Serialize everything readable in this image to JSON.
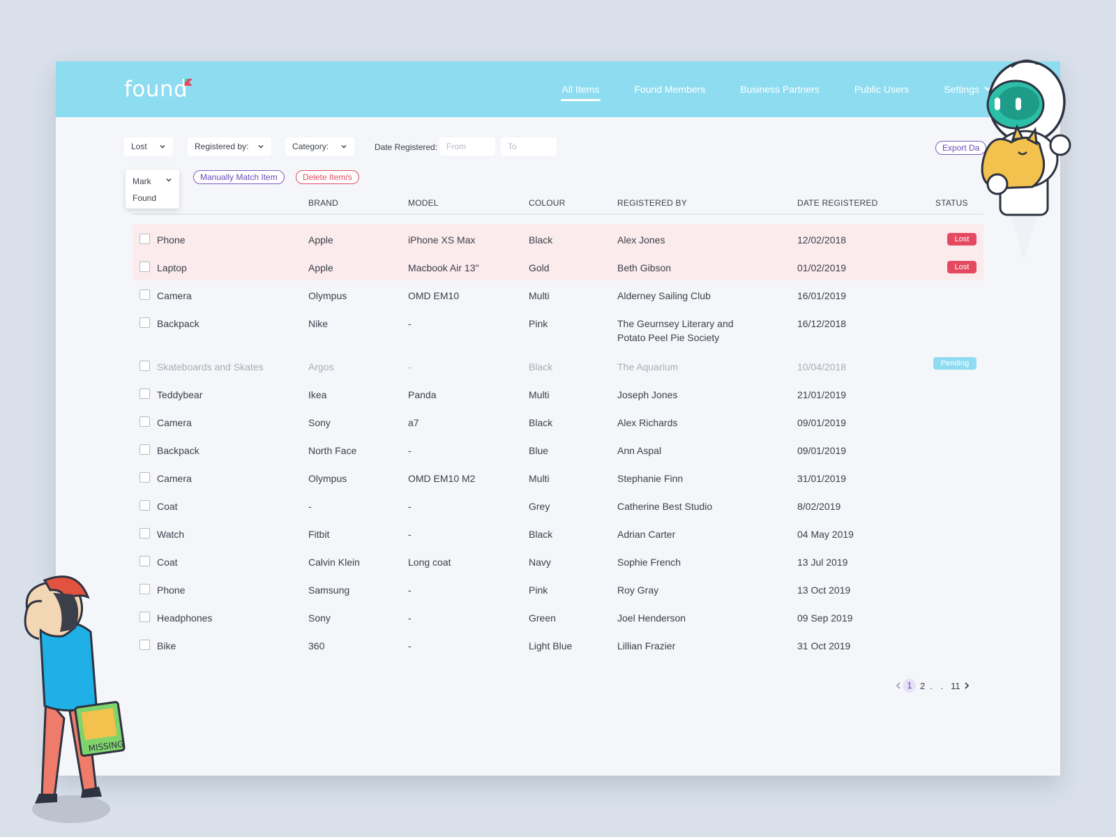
{
  "app": {
    "logo_text": "found",
    "brand_color": "#8edcf0",
    "flag_colors": [
      "#e5495f",
      "#3cc7b5"
    ]
  },
  "nav": {
    "items": [
      {
        "label": "All Items",
        "active": true
      },
      {
        "label": "Found Members",
        "active": false
      },
      {
        "label": "Business Partners",
        "active": false
      },
      {
        "label": "Public Users",
        "active": false
      },
      {
        "label": "Settings",
        "active": false
      }
    ]
  },
  "filters": {
    "status_value": "Lost",
    "registered_by_label": "Registered by:",
    "category_label": "Category:",
    "date_label": "Date Registered:",
    "from_placeholder": "From",
    "to_placeholder": "To",
    "export_label": "Export Da"
  },
  "actions": {
    "mark_label": "Mark",
    "mark_option_found": "Found",
    "manual_match_label": "Manually Match Item",
    "delete_label": "Delete Item/s"
  },
  "table": {
    "headers": {
      "brand": "BRAND",
      "model": "MODEL",
      "colour": "COLOUR",
      "registered_by": "REGISTERED BY",
      "date_registered": "DATE REGISTERED",
      "status": "STATUS"
    },
    "rows": [
      {
        "item": "Phone",
        "brand": "Apple",
        "model": "iPhone XS Max",
        "colour": "Black",
        "registered_by": "Alex Jones",
        "registered_by_2": "",
        "date": "12/02/2018",
        "status": "Lost"
      },
      {
        "item": "Laptop",
        "brand": "Apple",
        "model": "Macbook Air 13\"",
        "colour": "Gold",
        "registered_by": "Beth Gibson",
        "registered_by_2": "",
        "date": "01/02/2019",
        "status": "Lost"
      },
      {
        "item": "Camera",
        "brand": "Olympus",
        "model": "OMD EM10",
        "colour": "Multi",
        "registered_by": "Alderney Sailing Club",
        "registered_by_2": "",
        "date": "16/01/2019",
        "status": ""
      },
      {
        "item": "Backpack",
        "brand": "Nike",
        "model": "-",
        "colour": "Pink",
        "registered_by": "The Geurnsey Literary and",
        "registered_by_2": "Potato Peel Pie Society",
        "date": "16/12/2018",
        "status": ""
      },
      {
        "item": "Skateboards and Skates",
        "brand": "Argos",
        "model": "-",
        "colour": "Black",
        "registered_by": "The Aquarium",
        "registered_by_2": "",
        "date": "10/04/2018",
        "status": "Pending"
      },
      {
        "item": "Teddybear",
        "brand": "Ikea",
        "model": "Panda",
        "colour": "Multi",
        "registered_by": "Joseph Jones",
        "registered_by_2": "",
        "date": "21/01/2019",
        "status": ""
      },
      {
        "item": "Camera",
        "brand": "Sony",
        "model": "a7",
        "colour": "Black",
        "registered_by": "Alex Richards",
        "registered_by_2": "",
        "date": "09/01/2019",
        "status": ""
      },
      {
        "item": "Backpack",
        "brand": "North Face",
        "model": "-",
        "colour": "Blue",
        "registered_by": "Ann Aspal",
        "registered_by_2": "",
        "date": "09/01/2019",
        "status": ""
      },
      {
        "item": "Camera",
        "brand": "Olympus",
        "model": "OMD EM10 M2",
        "colour": "Multi",
        "registered_by": "Stephanie Finn",
        "registered_by_2": "",
        "date": "31/01/2019",
        "status": ""
      },
      {
        "item": "Coat",
        "brand": "-",
        "model": "-",
        "colour": "Grey",
        "registered_by": "Catherine Best Studio",
        "registered_by_2": "",
        "date": "8/02/2019",
        "status": ""
      },
      {
        "item": "Watch",
        "brand": "Fitbit",
        "model": "-",
        "colour": "Black",
        "registered_by": "Adrian Carter",
        "registered_by_2": "",
        "date": "04 May 2019",
        "status": ""
      },
      {
        "item": "Coat",
        "brand": "Calvin Klein",
        "model": "Long coat",
        "colour": "Navy",
        "registered_by": "Sophie French",
        "registered_by_2": "",
        "date": "13 Jul 2019",
        "status": ""
      },
      {
        "item": "Phone",
        "brand": "Samsung",
        "model": "-",
        "colour": "Pink",
        "registered_by": "Roy Gray",
        "registered_by_2": "",
        "date": "13 Oct 2019",
        "status": ""
      },
      {
        "item": "Headphones",
        "brand": "Sony",
        "model": "-",
        "colour": "Green",
        "registered_by": "Joel Henderson",
        "registered_by_2": "",
        "date": "09 Sep 2019",
        "status": ""
      },
      {
        "item": "Bike",
        "brand": "360",
        "model": "-",
        "colour": "Light Blue",
        "registered_by": "Lillian Frazier",
        "registered_by_2": "",
        "date": "31 Oct 2019",
        "status": ""
      }
    ]
  },
  "pagination": {
    "current": "1",
    "next": "2",
    "ellipsis": ". .",
    "last": "11"
  },
  "illustrations": {
    "poster_text": "MISSING"
  }
}
